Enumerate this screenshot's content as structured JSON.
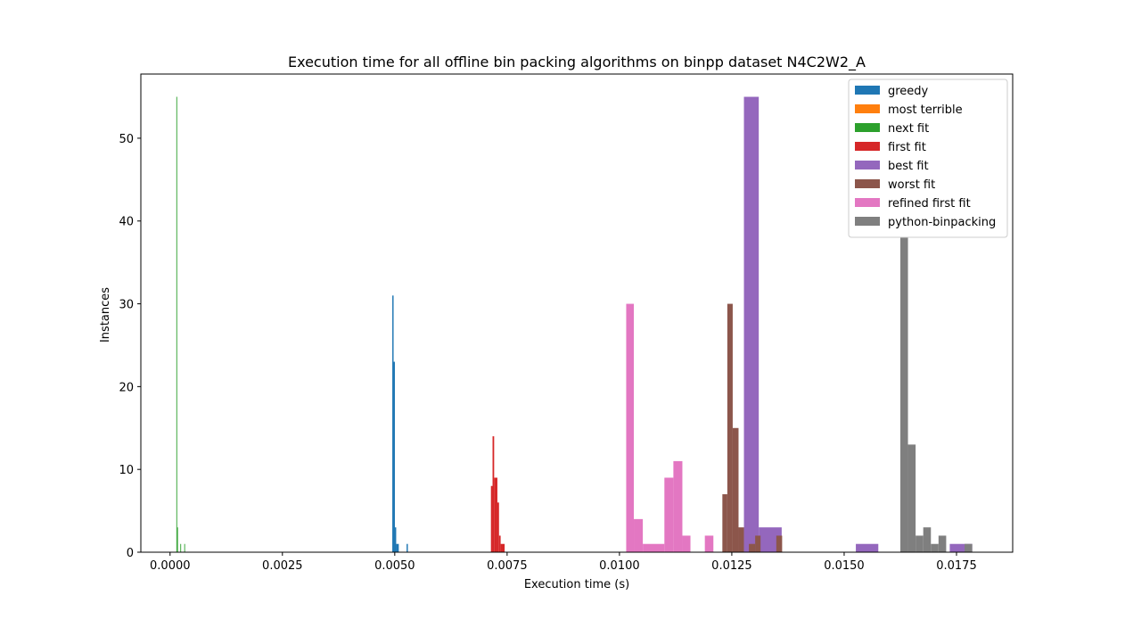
{
  "chart_data": {
    "type": "histogram",
    "title": "Execution time for all offline bin packing algorithms on binpp dataset N4C2W2_A",
    "xlabel": "Execution time (s)",
    "ylabel": "Instances",
    "xlim": [
      -0.00065,
      0.01875
    ],
    "ylim": [
      0,
      57.75
    ],
    "xticks": [
      0.0,
      0.0025,
      0.005,
      0.0075,
      0.01,
      0.0125,
      0.015,
      0.0175
    ],
    "xtick_labels": [
      "0.0000",
      "0.0025",
      "0.0050",
      "0.0075",
      "0.0100",
      "0.0125",
      "0.0150",
      "0.0175"
    ],
    "yticks": [
      0,
      10,
      20,
      30,
      40,
      50
    ],
    "ytick_labels": [
      "0",
      "10",
      "20",
      "30",
      "40",
      "50"
    ],
    "legend_position": "upper right",
    "grid": false,
    "series": [
      {
        "name": "greedy",
        "color": "#1f77b4",
        "bins": [
          {
            "x0": 0.004945,
            "x1": 0.004974,
            "count": 31
          },
          {
            "x0": 0.004974,
            "x1": 0.005003,
            "count": 23
          },
          {
            "x0": 0.005003,
            "x1": 0.005032,
            "count": 3
          },
          {
            "x0": 0.005032,
            "x1": 0.00509,
            "count": 1
          },
          {
            "x0": 0.005263,
            "x1": 0.005292,
            "count": 1
          }
        ]
      },
      {
        "name": "most terrible",
        "color": "#ff7f0e",
        "bins": []
      },
      {
        "name": "next fit",
        "color": "#2ca02c",
        "bins": [
          {
            "x0": 0.00014,
            "x1": 0.000158,
            "count": 55
          },
          {
            "x0": 0.000158,
            "x1": 0.000176,
            "count": 3
          },
          {
            "x0": 0.000228,
            "x1": 0.000246,
            "count": 1
          },
          {
            "x0": 0.000316,
            "x1": 0.000334,
            "count": 1
          }
        ]
      },
      {
        "name": "first fit",
        "color": "#d62728",
        "bins": [
          {
            "x0": 0.00714,
            "x1": 0.007176,
            "count": 8
          },
          {
            "x0": 0.007176,
            "x1": 0.007212,
            "count": 14
          },
          {
            "x0": 0.007212,
            "x1": 0.007284,
            "count": 9
          },
          {
            "x0": 0.007284,
            "x1": 0.00732,
            "count": 6
          },
          {
            "x0": 0.00732,
            "x1": 0.007356,
            "count": 2
          },
          {
            "x0": 0.007356,
            "x1": 0.007445,
            "count": 1
          }
        ]
      },
      {
        "name": "best fit",
        "color": "#9467bd",
        "bins": [
          {
            "x0": 0.01277,
            "x1": 0.0131,
            "count": 55
          },
          {
            "x0": 0.0131,
            "x1": 0.01361,
            "count": 3
          },
          {
            "x0": 0.01526,
            "x1": 0.01576,
            "count": 1
          },
          {
            "x0": 0.01735,
            "x1": 0.01785,
            "count": 1
          }
        ]
      },
      {
        "name": "worst fit",
        "color": "#8c564b",
        "bins": [
          {
            "x0": 0.01229,
            "x1": 0.0124,
            "count": 7
          },
          {
            "x0": 0.0124,
            "x1": 0.01252,
            "count": 30
          },
          {
            "x0": 0.01252,
            "x1": 0.01265,
            "count": 15
          },
          {
            "x0": 0.01265,
            "x1": 0.01277,
            "count": 3
          },
          {
            "x0": 0.01288,
            "x1": 0.01302,
            "count": 1
          },
          {
            "x0": 0.01302,
            "x1": 0.01314,
            "count": 2
          },
          {
            "x0": 0.01349,
            "x1": 0.01362,
            "count": 2
          }
        ]
      },
      {
        "name": "refined first fit",
        "color": "#e377c2",
        "bins": [
          {
            "x0": 0.01015,
            "x1": 0.01032,
            "count": 30
          },
          {
            "x0": 0.01032,
            "x1": 0.01052,
            "count": 4
          },
          {
            "x0": 0.01052,
            "x1": 0.011,
            "count": 1
          },
          {
            "x0": 0.011,
            "x1": 0.0112,
            "count": 9
          },
          {
            "x0": 0.0112,
            "x1": 0.0114,
            "count": 11
          },
          {
            "x0": 0.0114,
            "x1": 0.01158,
            "count": 2
          },
          {
            "x0": 0.0119,
            "x1": 0.01209,
            "count": 2
          }
        ]
      },
      {
        "name": "python-binpacking",
        "color": "#7f7f7f",
        "bins": [
          {
            "x0": 0.01625,
            "x1": 0.01642,
            "count": 38
          },
          {
            "x0": 0.01642,
            "x1": 0.01659,
            "count": 13
          },
          {
            "x0": 0.01659,
            "x1": 0.01676,
            "count": 2
          },
          {
            "x0": 0.01676,
            "x1": 0.01693,
            "count": 3
          },
          {
            "x0": 0.01693,
            "x1": 0.0171,
            "count": 1
          },
          {
            "x0": 0.0171,
            "x1": 0.01727,
            "count": 2
          },
          {
            "x0": 0.01768,
            "x1": 0.01785,
            "count": 1
          }
        ]
      }
    ]
  }
}
